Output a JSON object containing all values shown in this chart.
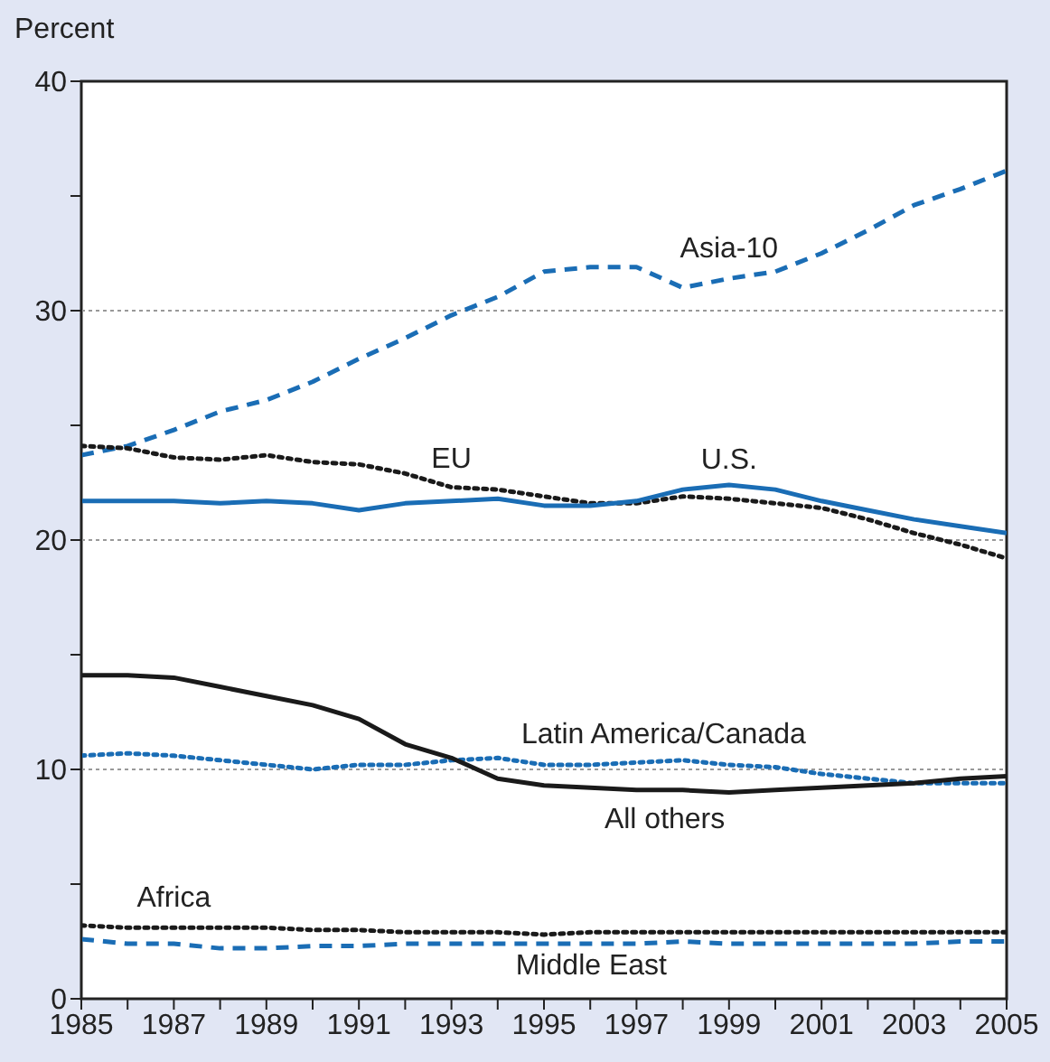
{
  "chart_data": {
    "type": "line",
    "ylabel": "Percent",
    "x": [
      1985,
      1986,
      1987,
      1988,
      1989,
      1990,
      1991,
      1992,
      1993,
      1994,
      1995,
      1996,
      1997,
      1998,
      1999,
      2000,
      2001,
      2002,
      2003,
      2004,
      2005
    ],
    "xlim": [
      1985,
      2005
    ],
    "xticks": [
      1985,
      {
        "value": 1986,
        "label": null
      },
      1987,
      {
        "value": 1988,
        "label": null
      },
      1989,
      {
        "value": 1990,
        "label": null
      },
      1991,
      {
        "value": 1992,
        "label": null
      },
      1993,
      {
        "value": 1994,
        "label": null
      },
      1995,
      {
        "value": 1996,
        "label": null
      },
      1997,
      {
        "value": 1998,
        "label": null
      },
      1999,
      {
        "value": 2000,
        "label": null
      },
      2001,
      {
        "value": 2002,
        "label": null
      },
      2003,
      {
        "value": 2004,
        "label": null
      },
      2005
    ],
    "ylim": [
      0,
      40
    ],
    "yticks": [
      0,
      {
        "value": 5,
        "label": null
      },
      10,
      {
        "value": 15,
        "label": null
      },
      20,
      {
        "value": 25,
        "label": null
      },
      30,
      {
        "value": 35,
        "label": null
      },
      40
    ],
    "grid": "y",
    "legend": false,
    "marker": "none",
    "series": [
      {
        "name": "Asia-10",
        "color": "#1a6db5",
        "line_style": "dashed",
        "values": [
          23.7,
          24.1,
          24.8,
          25.6,
          26.1,
          26.9,
          27.9,
          28.8,
          29.8,
          30.6,
          31.7,
          31.9,
          31.9,
          31.0,
          31.4,
          31.7,
          32.5,
          33.5,
          34.6,
          35.3,
          36.1
        ]
      },
      {
        "name": "EU",
        "color": "#1a1a1a",
        "line_style": "dotted",
        "values": [
          24.1,
          24.0,
          23.6,
          23.5,
          23.7,
          23.4,
          23.3,
          22.9,
          22.3,
          22.2,
          21.9,
          21.6,
          21.6,
          21.9,
          21.8,
          21.6,
          21.4,
          20.9,
          20.3,
          19.8,
          19.2
        ]
      },
      {
        "name": "U.S.",
        "color": "#1a6db5",
        "line_style": "solid",
        "values": [
          21.7,
          21.7,
          21.7,
          21.6,
          21.7,
          21.6,
          21.3,
          21.6,
          21.7,
          21.8,
          21.5,
          21.5,
          21.7,
          22.2,
          22.4,
          22.2,
          21.7,
          21.3,
          20.9,
          20.6,
          20.3
        ]
      },
      {
        "name": "Latin America/Canada",
        "color": "#1a6db5",
        "line_style": "dotted",
        "values": [
          10.6,
          10.7,
          10.6,
          10.4,
          10.2,
          10.0,
          10.2,
          10.2,
          10.4,
          10.5,
          10.2,
          10.2,
          10.3,
          10.4,
          10.2,
          10.1,
          9.8,
          9.6,
          9.4,
          9.4,
          9.4
        ]
      },
      {
        "name": "All others",
        "color": "#1a1a1a",
        "line_style": "solid",
        "values": [
          14.1,
          14.1,
          14.0,
          13.6,
          13.2,
          12.8,
          12.2,
          11.1,
          10.5,
          9.6,
          9.3,
          9.2,
          9.1,
          9.1,
          9.0,
          9.1,
          9.2,
          9.3,
          9.4,
          9.6,
          9.7
        ]
      },
      {
        "name": "Africa",
        "color": "#1a1a1a",
        "line_style": "dotted",
        "values": [
          3.2,
          3.1,
          3.1,
          3.1,
          3.1,
          3.0,
          3.0,
          2.9,
          2.9,
          2.9,
          2.8,
          2.9,
          2.9,
          2.9,
          2.9,
          2.9,
          2.9,
          2.9,
          2.9,
          2.9,
          2.9
        ]
      },
      {
        "name": "Middle East",
        "color": "#1a6db5",
        "line_style": "dashed",
        "values": [
          2.6,
          2.4,
          2.4,
          2.2,
          2.2,
          2.3,
          2.3,
          2.4,
          2.4,
          2.4,
          2.4,
          2.4,
          2.4,
          2.5,
          2.4,
          2.4,
          2.4,
          2.4,
          2.4,
          2.5,
          2.5
        ]
      }
    ]
  }
}
